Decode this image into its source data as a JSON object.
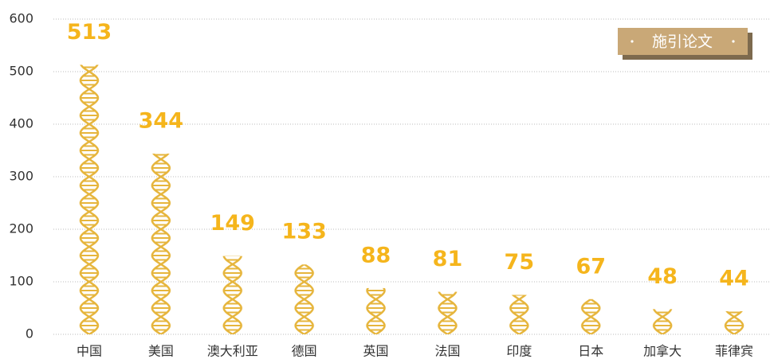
{
  "chart_data": {
    "type": "pictorial-bar",
    "categories": [
      "中国",
      "美国",
      "澳大利亚",
      "德国",
      "英国",
      "法国",
      "印度",
      "日本",
      "加拿大",
      "菲律宾"
    ],
    "series": [
      {
        "name": "施引论文",
        "color": "#e6b53c",
        "values": [
          513,
          344,
          149,
          133,
          88,
          81,
          75,
          67,
          48,
          44
        ]
      }
    ],
    "label_color": "#f5b51c",
    "legend_color": "#c9a877",
    "ylim": [
      0,
      600
    ],
    "yticks": [
      0,
      100,
      200,
      300,
      400,
      500,
      600
    ],
    "grid": true
  }
}
